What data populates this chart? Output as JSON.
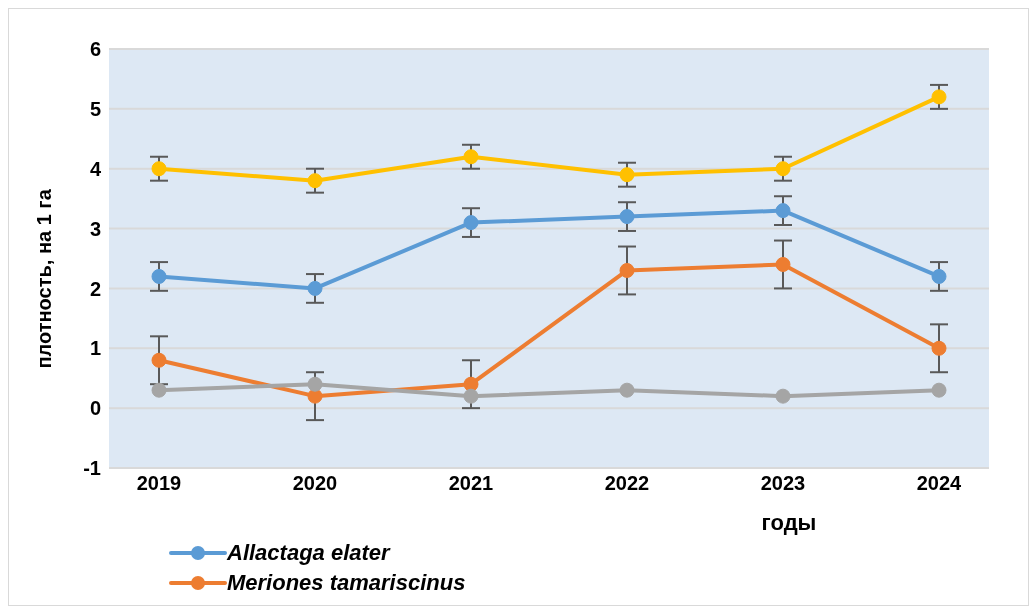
{
  "chart_data": {
    "type": "line",
    "xlabel": "годы",
    "ylabel": "плотность, на 1 га",
    "categories": [
      "2019",
      "2020",
      "2021",
      "2022",
      "2023",
      "2024"
    ],
    "series": [
      {
        "name": "Allactaga elater",
        "color": "#5b9bd5",
        "values": [
          2.2,
          2.0,
          3.1,
          3.2,
          3.3,
          2.2
        ],
        "errors": [
          0.24,
          0.24,
          0.24,
          0.24,
          0.24,
          0.24
        ]
      },
      {
        "name": "Meriones tamariscinus",
        "color": "#ed7d31",
        "values": [
          0.8,
          0.2,
          0.4,
          2.3,
          2.4,
          1.0
        ],
        "errors": [
          0.4,
          0.4,
          0.4,
          0.4,
          0.4,
          0.4
        ]
      },
      {
        "color": "#a5a5a5",
        "values": [
          0.3,
          0.4,
          0.2,
          0.3,
          0.2,
          0.3
        ]
      },
      {
        "color": "#ffc000",
        "values": [
          4.0,
          3.8,
          4.2,
          3.9,
          4.0,
          5.2
        ],
        "errors": [
          0.2,
          0.2,
          0.2,
          0.2,
          0.2,
          0.2
        ]
      }
    ],
    "ylim": [
      -1,
      6
    ],
    "yticks": [
      -1,
      0,
      1,
      2,
      3,
      4,
      5,
      6
    ],
    "grid": "y",
    "legend": "bottom left",
    "marker": "circle",
    "line_style": "solid"
  }
}
